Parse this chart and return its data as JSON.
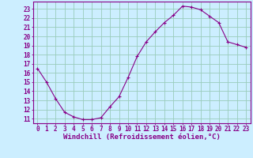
{
  "x": [
    0,
    1,
    2,
    3,
    4,
    5,
    6,
    7,
    8,
    9,
    10,
    11,
    12,
    13,
    14,
    15,
    16,
    17,
    18,
    19,
    20,
    21,
    22,
    23
  ],
  "y": [
    16.5,
    15.0,
    13.2,
    11.7,
    11.2,
    10.9,
    10.9,
    11.1,
    12.3,
    13.4,
    15.5,
    17.8,
    19.4,
    20.5,
    21.5,
    22.3,
    23.3,
    23.2,
    22.9,
    22.2,
    21.5,
    19.4,
    19.1,
    18.8
  ],
  "line_color": "#880088",
  "marker": "+",
  "marker_size": 3,
  "bg_color": "#cceeff",
  "grid_color": "#99ccbb",
  "xlabel": "Windchill (Refroidissement éolien,°C)",
  "xlim": [
    -0.5,
    23.5
  ],
  "ylim": [
    10.5,
    23.8
  ],
  "yticks": [
    11,
    12,
    13,
    14,
    15,
    16,
    17,
    18,
    19,
    20,
    21,
    22,
    23
  ],
  "xticks": [
    0,
    1,
    2,
    3,
    4,
    5,
    6,
    7,
    8,
    9,
    10,
    11,
    12,
    13,
    14,
    15,
    16,
    17,
    18,
    19,
    20,
    21,
    22,
    23
  ],
  "font_color": "#880088",
  "tick_fontsize": 5.5,
  "label_fontsize": 6.5
}
